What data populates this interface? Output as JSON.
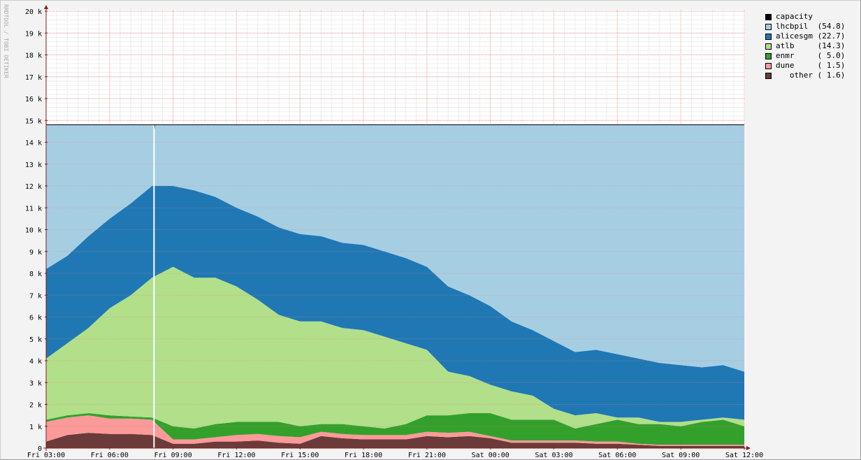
{
  "watermark": "RRDTOOL / TOBI OETIKER",
  "chart_data": {
    "type": "area",
    "stacked": true,
    "title": "",
    "xlabel": "",
    "ylabel": "",
    "ylim": [
      0,
      20000
    ],
    "grid": true,
    "legend_position": "right",
    "yticks": [
      0,
      1000,
      2000,
      3000,
      4000,
      5000,
      6000,
      7000,
      8000,
      9000,
      10000,
      11000,
      12000,
      13000,
      14000,
      15000,
      16000,
      17000,
      18000,
      19000,
      20000
    ],
    "ytick_labels": [
      "0",
      "1 k",
      "2 k",
      "3 k",
      "4 k",
      "5 k",
      "6 k",
      "7 k",
      "8 k",
      "9 k",
      "10 k",
      "11 k",
      "12 k",
      "13 k",
      "14 k",
      "15 k",
      "16 k",
      "17 k",
      "18 k",
      "19 k",
      "20 k"
    ],
    "x_hours_from_start": [
      0,
      1,
      2,
      3,
      4,
      5,
      6,
      7,
      8,
      9,
      10,
      11,
      12,
      13,
      14,
      15,
      16,
      17,
      18,
      19,
      20,
      21,
      22,
      23,
      24,
      25,
      26,
      27,
      28,
      29,
      30,
      31,
      32,
      33
    ],
    "xtick_hours": [
      0,
      3,
      6,
      9,
      12,
      15,
      18,
      21,
      24,
      27,
      30,
      33
    ],
    "xtick_labels": [
      "Fri 03:00",
      "Fri 06:00",
      "Fri 09:00",
      "Fri 12:00",
      "Fri 15:00",
      "Fri 18:00",
      "Fri 21:00",
      "Sat 00:00",
      "Sat 03:00",
      "Sat 06:00",
      "Sat 09:00",
      "Sat 12:00"
    ],
    "capacity": {
      "name": "capacity",
      "value": 14800,
      "color": "#000000",
      "legend": "capacity"
    },
    "marker_hour": 5.1,
    "series": [
      {
        "name": "other",
        "legend": "   other ( 1.6)",
        "color": "#6b3b3b",
        "values": [
          300,
          600,
          700,
          650,
          650,
          600,
          200,
          200,
          300,
          300,
          350,
          250,
          200,
          550,
          450,
          400,
          400,
          400,
          550,
          500,
          550,
          450,
          250,
          250,
          250,
          250,
          200,
          200,
          150,
          100,
          100,
          100,
          100,
          100
        ]
      },
      {
        "name": "dune",
        "legend": "dune     ( 1.5)",
        "color": "#fb9a99",
        "values": [
          900,
          800,
          800,
          700,
          700,
          700,
          200,
          200,
          200,
          300,
          300,
          300,
          300,
          200,
          200,
          200,
          200,
          200,
          200,
          200,
          200,
          100,
          100,
          100,
          100,
          100,
          100,
          100,
          50,
          50,
          50,
          50,
          50,
          50
        ]
      },
      {
        "name": "enmr",
        "legend": "enmr     ( 5.0)",
        "color": "#33a02c",
        "values": [
          100,
          100,
          100,
          150,
          100,
          100,
          600,
          500,
          600,
          600,
          550,
          650,
          500,
          350,
          450,
          400,
          300,
          500,
          750,
          800,
          850,
          1050,
          950,
          950,
          950,
          550,
          800,
          1000,
          900,
          950,
          850,
          1050,
          1150,
          850
        ]
      },
      {
        "name": "atlb",
        "legend": "atlb     (14.3)",
        "color": "#b2df8a",
        "values": [
          2800,
          3300,
          3900,
          4900,
          5550,
          6400,
          7300,
          6900,
          6700,
          6200,
          5600,
          4900,
          4800,
          4700,
          4400,
          4400,
          4200,
          3700,
          3000,
          2000,
          1700,
          1300,
          1300,
          1100,
          500,
          600,
          500,
          100,
          300,
          100,
          200,
          100,
          100,
          300
        ]
      },
      {
        "name": "alicesgm",
        "legend": "alicesgm (22.7)",
        "color": "#1f78b4",
        "values": [
          4100,
          4000,
          4200,
          4100,
          4200,
          4200,
          3700,
          4000,
          3700,
          3600,
          3800,
          4000,
          4000,
          3900,
          3900,
          3900,
          3900,
          3900,
          3800,
          3900,
          3700,
          3600,
          3200,
          3000,
          3100,
          2900,
          2900,
          2900,
          2700,
          2700,
          2600,
          2400,
          2400,
          2200
        ]
      },
      {
        "name": "lhcbpil",
        "legend": "lhcbpil  (54.8)",
        "color": "#a6cee3",
        "values": [
          6600,
          6000,
          5100,
          4300,
          3600,
          2800,
          2800,
          3000,
          3300,
          3800,
          4200,
          4700,
          5000,
          5100,
          5400,
          5500,
          5800,
          6100,
          6500,
          7400,
          7800,
          8300,
          9000,
          9400,
          9900,
          10400,
          10300,
          10500,
          10700,
          10900,
          11000,
          11100,
          11000,
          11300
        ]
      }
    ]
  }
}
